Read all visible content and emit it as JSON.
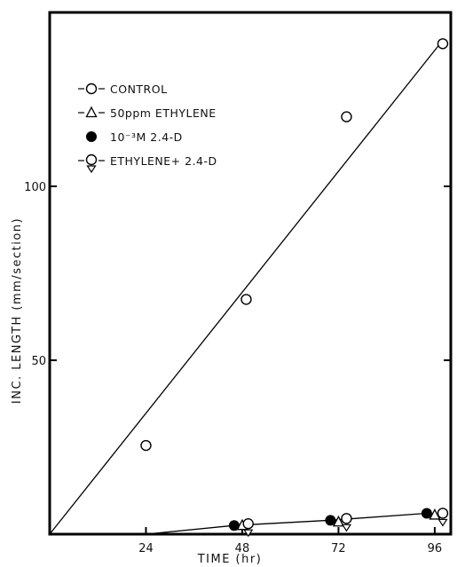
{
  "chart_data": {
    "type": "scatter",
    "xlabel": "TIME (hr)",
    "ylabel": "INC. LENGTH (mm/section)",
    "xlim": [
      0,
      100
    ],
    "ylim": [
      0,
      150
    ],
    "x_ticks": [
      24,
      48,
      72,
      96
    ],
    "y_ticks": [
      50,
      100
    ],
    "grid": false,
    "legend_position": "top-left",
    "series": [
      {
        "name": "CONTROL",
        "marker": "open-circle",
        "points": [
          [
            24,
            25.5
          ],
          [
            49,
            67.5
          ],
          [
            74,
            120
          ],
          [
            98,
            141
          ]
        ]
      },
      {
        "name": "50ppm ETHYLENE",
        "marker": "open-triangle",
        "points": [
          [
            48,
            2.5
          ],
          [
            72,
            3.5
          ],
          [
            96,
            5.5
          ]
        ]
      },
      {
        "name": "10⁻³M 2.4-D",
        "marker": "filled-circle",
        "points": [
          [
            46,
            2.5
          ],
          [
            70,
            4
          ],
          [
            94,
            6
          ]
        ]
      },
      {
        "name": "ETHYLENE+ 2.4-D",
        "marker": "circle-over-triangle",
        "points": [
          [
            49.5,
            2.5
          ],
          [
            74,
            4
          ],
          [
            98,
            5.5
          ]
        ]
      }
    ],
    "lines": [
      {
        "name": "control-fit",
        "points": [
          [
            0,
            0
          ],
          [
            98,
            142
          ]
        ]
      },
      {
        "name": "treatments-fit",
        "points": [
          [
            24,
            0
          ],
          [
            46,
            2.5
          ],
          [
            70,
            4
          ],
          [
            94,
            6
          ]
        ]
      }
    ]
  }
}
